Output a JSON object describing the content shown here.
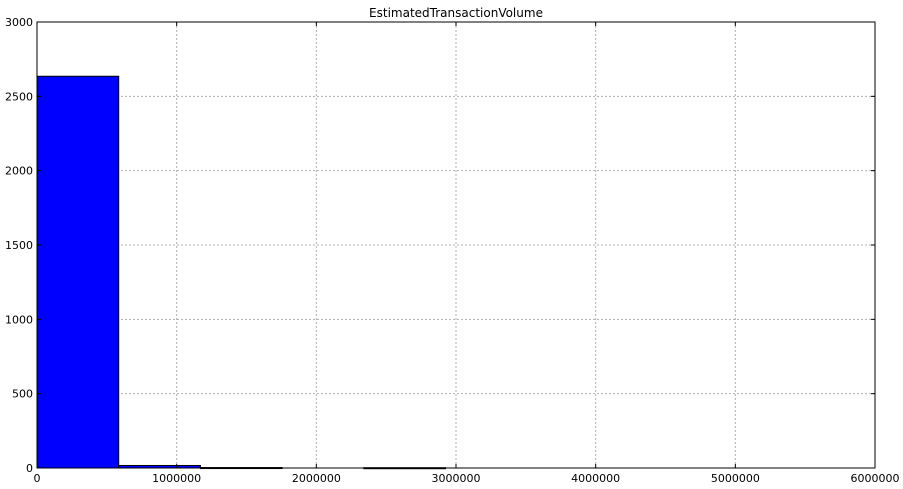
{
  "chart_data": {
    "type": "bar",
    "subtype": "histogram",
    "title": "EstimatedTransactionVolume",
    "xlabel": "",
    "ylabel": "",
    "xlim": [
      0,
      6000000
    ],
    "ylim": [
      0,
      3000
    ],
    "xticks": [
      0,
      1000000,
      2000000,
      3000000,
      4000000,
      5000000,
      6000000
    ],
    "xtick_labels": [
      "0",
      "1000000",
      "2000000",
      "3000000",
      "4000000",
      "5000000",
      "6000000"
    ],
    "yticks": [
      0,
      500,
      1000,
      1500,
      2000,
      2500,
      3000
    ],
    "ytick_labels": [
      "0",
      "500",
      "1000",
      "1500",
      "2000",
      "2500",
      "3000"
    ],
    "bins": [
      {
        "x0": 0,
        "x1": 585000,
        "value": 2635
      },
      {
        "x0": 585000,
        "x1": 1170000,
        "value": 17
      },
      {
        "x0": 1170000,
        "x1": 1755000,
        "value": 3
      },
      {
        "x0": 1755000,
        "x1": 2340000,
        "value": 0
      },
      {
        "x0": 2340000,
        "x1": 2925000,
        "value": 2
      }
    ],
    "grid": true,
    "bar_color": "#0000ff",
    "edge_color": "#000000"
  }
}
